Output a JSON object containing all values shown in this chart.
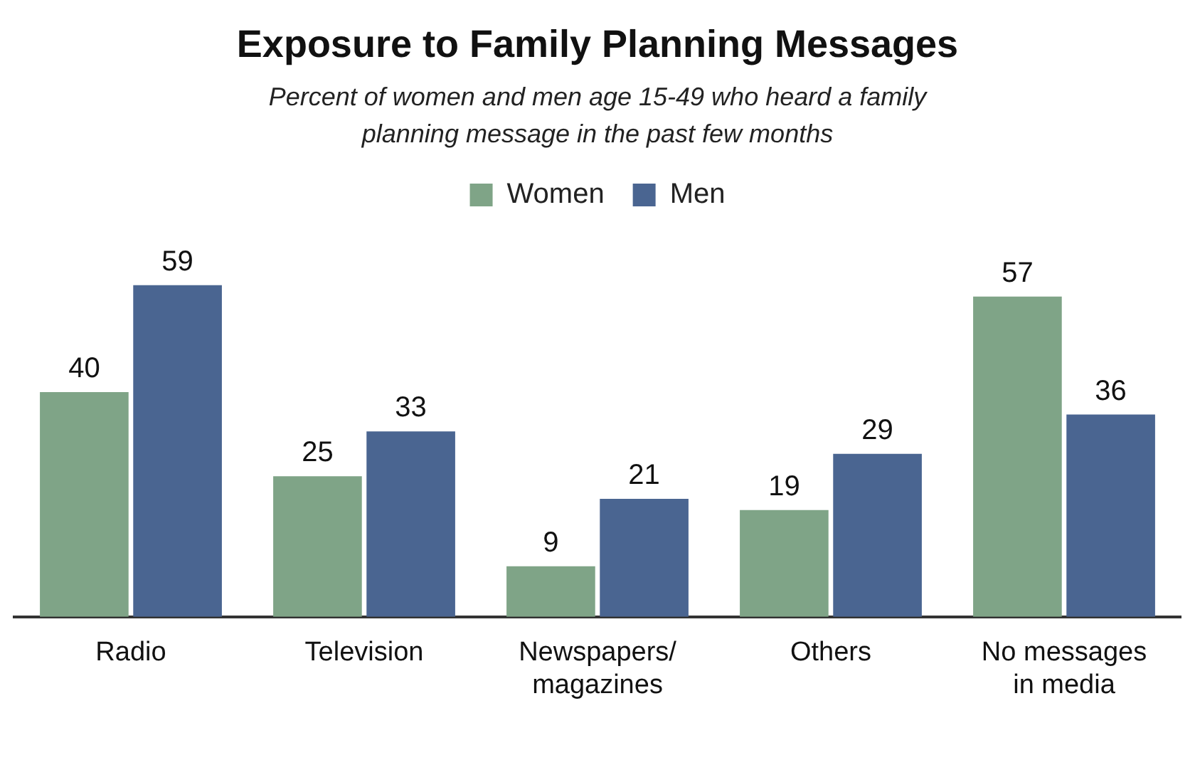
{
  "chart_data": {
    "type": "bar",
    "title": "Exposure to Family Planning Messages",
    "subtitle": "Percent of women and men age 15-49 who heard a family planning message in the past few months",
    "categories": [
      "Radio",
      "Television",
      "Newspapers/ magazines",
      "Others",
      "No messages in media"
    ],
    "series": [
      {
        "name": "Women",
        "color": "#7fa487",
        "values": [
          40,
          25,
          9,
          19,
          57
        ]
      },
      {
        "name": "Men",
        "color": "#4a6591",
        "values": [
          59,
          33,
          21,
          29,
          36
        ]
      }
    ],
    "data_labels": true,
    "grid": false,
    "legend": "top",
    "tick_labels": "x"
  }
}
